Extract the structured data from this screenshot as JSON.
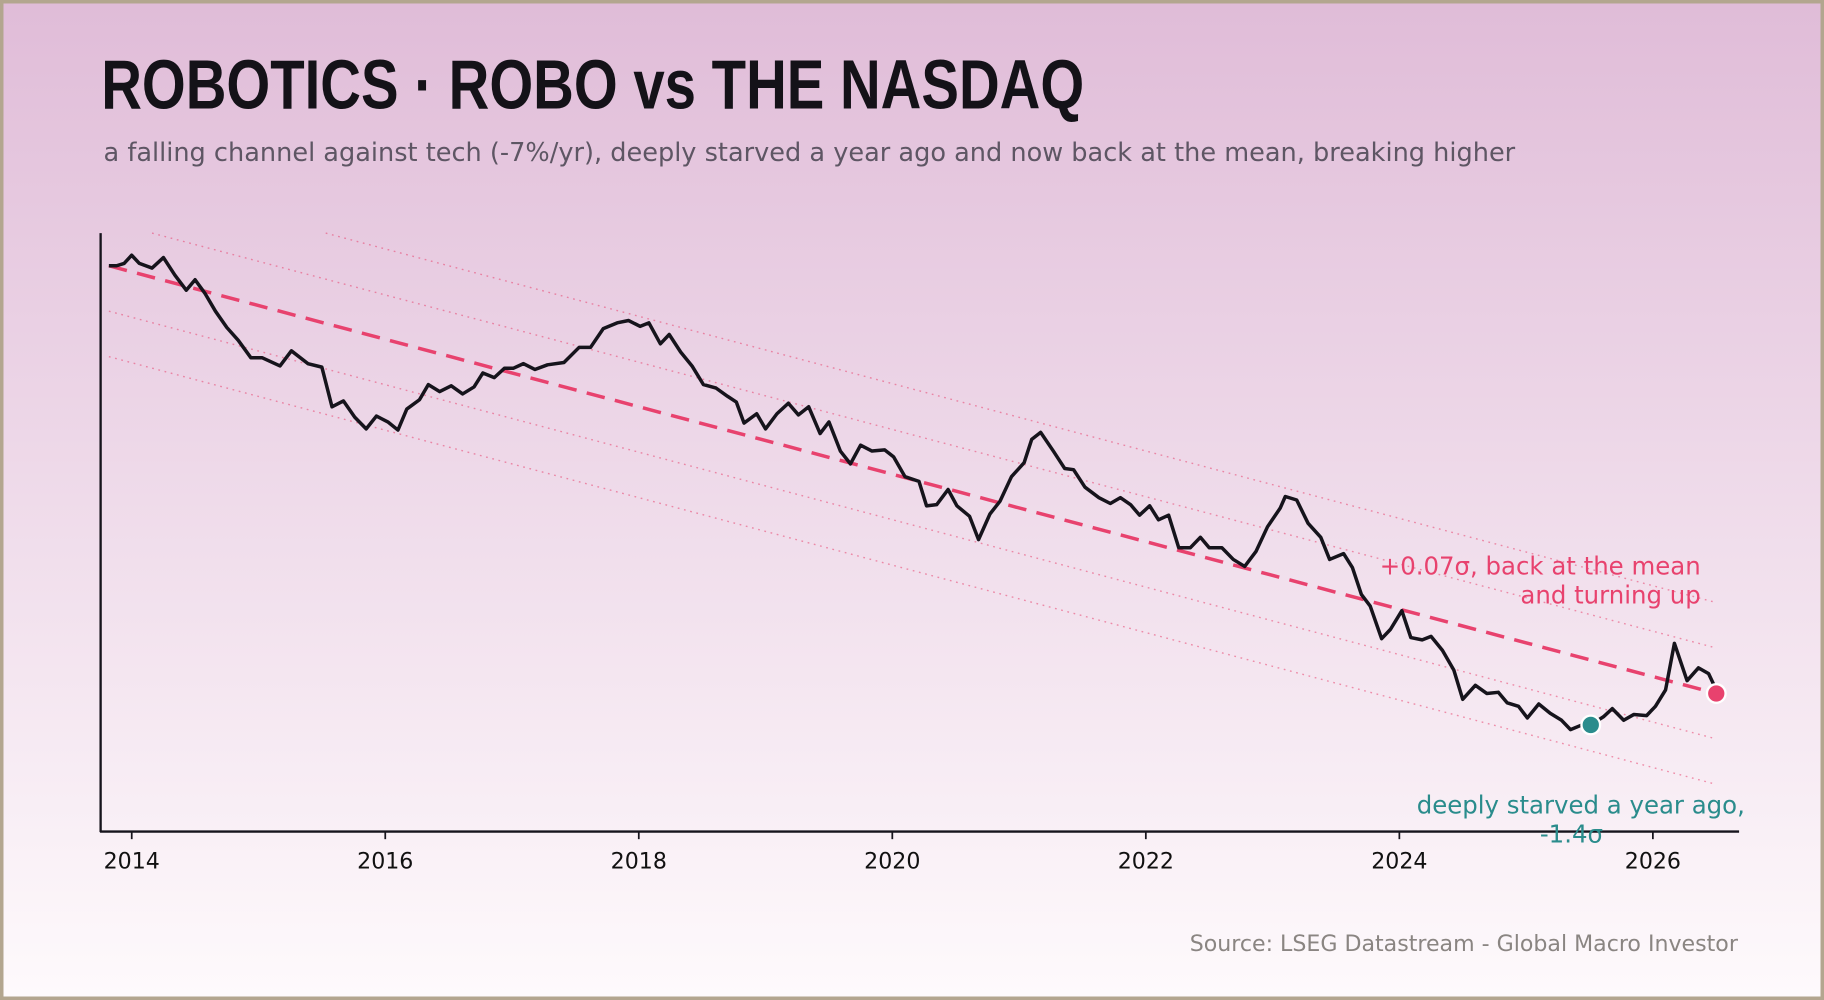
{
  "chart_data": {
    "type": "line",
    "title": "ROBOTICS  ·  ROBO vs THE NASDAQ",
    "subtitle": "a falling channel against tech (-7%/yr), deeply starved a year ago and now back at the mean, breaking higher",
    "source": "Source: LSEG Datastream - Global Macro Investor",
    "xlim": [
      2013.75,
      2026.68
    ],
    "ylim": [
      0,
      513
    ],
    "xticks": [
      2014,
      2016,
      2018,
      2020,
      2022,
      2024,
      2026
    ],
    "series": [
      {
        "color": "#16141c",
        "x": [
          2013.82,
          2013.88,
          2013.94,
          2014.0,
          2014.06,
          2014.16,
          2014.25,
          2014.34,
          2014.43,
          2014.5,
          2014.58,
          2014.66,
          2014.75,
          2014.84,
          2014.94,
          2015.03,
          2015.17,
          2015.26,
          2015.39,
          2015.5,
          2015.58,
          2015.67,
          2015.76,
          2015.85,
          2015.93,
          2016.02,
          2016.1,
          2016.17,
          2016.27,
          2016.34,
          2016.43,
          2016.52,
          2016.61,
          2016.7,
          2016.77,
          2016.86,
          2016.94,
          2017.01,
          2017.09,
          2017.18,
          2017.28,
          2017.41,
          2017.53,
          2017.62,
          2017.72,
          2017.83,
          2017.92,
          2018.01,
          2018.08,
          2018.17,
          2018.24,
          2018.33,
          2018.42,
          2018.51,
          2018.61,
          2018.7,
          2018.77,
          2018.83,
          2018.93,
          2019.0,
          2019.09,
          2019.18,
          2019.26,
          2019.34,
          2019.43,
          2019.5,
          2019.59,
          2019.67,
          2019.75,
          2019.84,
          2019.94,
          2020.01,
          2020.1,
          2020.21,
          2020.27,
          2020.35,
          2020.44,
          2020.51,
          2020.61,
          2020.68,
          2020.77,
          2020.85,
          2020.94,
          2021.04,
          2021.1,
          2021.17,
          2021.27,
          2021.36,
          2021.43,
          2021.52,
          2021.63,
          2021.72,
          2021.8,
          2021.88,
          2021.95,
          2022.03,
          2022.1,
          2022.18,
          2022.26,
          2022.35,
          2022.43,
          2022.5,
          2022.6,
          2022.69,
          2022.78,
          2022.87,
          2022.96,
          2023.06,
          2023.1,
          2023.19,
          2023.28,
          2023.38,
          2023.45,
          2023.56,
          2023.63,
          2023.7,
          2023.77,
          2023.86,
          2023.93,
          2024.02,
          2024.09,
          2024.18,
          2024.25,
          2024.34,
          2024.43,
          2024.5,
          2024.6,
          2024.69,
          2024.78,
          2024.85,
          2024.94,
          2025.01,
          2025.1,
          2025.19,
          2025.28,
          2025.35,
          2025.44,
          2025.51,
          2025.61,
          2025.68,
          2025.77,
          2025.85,
          2025.95,
          2026.02,
          2026.1,
          2026.17,
          2026.27,
          2026.36,
          2026.44,
          2026.5
        ],
        "values": [
          485,
          485,
          487,
          494,
          487,
          483,
          492,
          477,
          464,
          473,
          461,
          446,
          432,
          421,
          406,
          406,
          399,
          412,
          401,
          398,
          364,
          369,
          355,
          345,
          356,
          351,
          344,
          362,
          370,
          383,
          377,
          382,
          375,
          381,
          393,
          389,
          397,
          397,
          401,
          396,
          400,
          402,
          415,
          415,
          431,
          436,
          438,
          433,
          436,
          418,
          426,
          411,
          399,
          383,
          380,
          373,
          368,
          350,
          358,
          345,
          358,
          367,
          357,
          364,
          341,
          351,
          326,
          315,
          331,
          326,
          327,
          321,
          304,
          300,
          279,
          280,
          293,
          279,
          270,
          250,
          272,
          283,
          304,
          316,
          336,
          342,
          326,
          311,
          310,
          295,
          286,
          281,
          286,
          280,
          271,
          279,
          267,
          271,
          243,
          243,
          252,
          243,
          243,
          233,
          227,
          240,
          261,
          277,
          287,
          284,
          264,
          252,
          233,
          238,
          226,
          203,
          193,
          165,
          173,
          189,
          166,
          164,
          167,
          155,
          138,
          113,
          125,
          118,
          119,
          110,
          107,
          97,
          109,
          101,
          95,
          87,
          91,
          91,
          98,
          105,
          95,
          100,
          99,
          107,
          121,
          161,
          129,
          140,
          135,
          121
        ]
      }
    ],
    "trend": {
      "color": "#e8426e",
      "x": [
        2013.82,
        2026.5
      ],
      "values": [
        485,
        118
      ]
    },
    "bands": [
      {
        "x": [
          2014.16,
          2026.5
        ],
        "values": [
          513,
          157
        ]
      },
      {
        "x": [
          2015.53,
          2026.5
        ],
        "values": [
          513,
          196
        ]
      },
      {
        "x": [
          2013.82,
          2026.5
        ],
        "values": [
          446,
          79
        ]
      },
      {
        "x": [
          2013.82,
          2026.5
        ],
        "values": [
          407,
          40
        ]
      }
    ],
    "annotations": [
      {
        "text": [
          "+0.07σ, back at the mean",
          "and turning up"
        ],
        "color": "#e8426e",
        "x": 2026.5,
        "y": 118
      },
      {
        "text": [
          "deeply starved a year ago,",
          "-1.4σ"
        ],
        "color": "#2a8c8c",
        "x": 2025.51,
        "y": 91
      }
    ]
  }
}
